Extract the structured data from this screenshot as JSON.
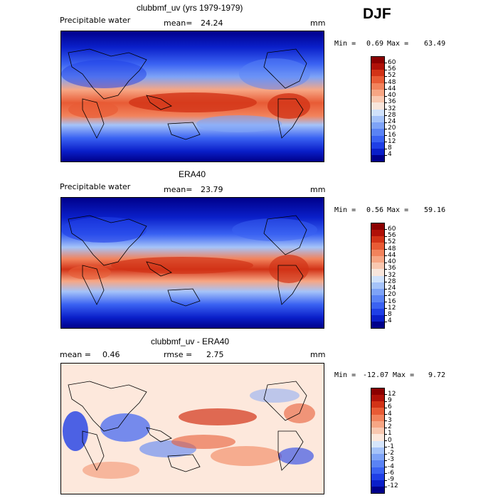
{
  "season": "DJF",
  "chart_data": [
    {
      "type": "heatmap",
      "title": "clubbmf_uv (yrs 1979-1979)",
      "field_label": "Precipitable water",
      "stat_label": "mean=",
      "stat_value": "24.24",
      "units": "mm",
      "min_label": "Min =",
      "min_value": "0.69",
      "max_label": "Max =",
      "max_value": "63.49",
      "colorbar_levels": [
        "4",
        "8",
        "12",
        "16",
        "20",
        "24",
        "28",
        "32",
        "36",
        "40",
        "44",
        "48",
        "52",
        "56",
        "60"
      ],
      "colorbar_colors": [
        "#00008b",
        "#0a1fc9",
        "#1f3fe6",
        "#3a62f2",
        "#5a83f5",
        "#7ea3f7",
        "#a5c3f9",
        "#d0e2fb",
        "#f8e6dc",
        "#f9c8b0",
        "#f7a684",
        "#f2835c",
        "#e85b35",
        "#d23317",
        "#b01108",
        "#8b0000"
      ]
    },
    {
      "type": "heatmap",
      "title": "ERA40",
      "field_label": "Precipitable water",
      "stat_label": "mean=",
      "stat_value": "23.79",
      "units": "mm",
      "min_label": "Min =",
      "min_value": "0.56",
      "max_label": "Max =",
      "max_value": "59.16",
      "colorbar_levels": [
        "4",
        "8",
        "12",
        "16",
        "20",
        "24",
        "28",
        "32",
        "36",
        "40",
        "44",
        "48",
        "52",
        "56",
        "60"
      ],
      "colorbar_colors": [
        "#00008b",
        "#0a1fc9",
        "#1f3fe6",
        "#3a62f2",
        "#5a83f5",
        "#7ea3f7",
        "#a5c3f9",
        "#d0e2fb",
        "#f8e6dc",
        "#f9c8b0",
        "#f7a684",
        "#f2835c",
        "#e85b35",
        "#d23317",
        "#b01108",
        "#8b0000"
      ]
    },
    {
      "type": "heatmap",
      "title": "clubbmf_uv - ERA40",
      "mean_label": "mean =",
      "mean_value": "0.46",
      "rmse_label": "rmse =",
      "rmse_value": "2.75",
      "units": "mm",
      "min_label": "Min =",
      "min_value": "-12.07",
      "max_label": "Max =",
      "max_value": "9.72",
      "colorbar_levels": [
        "-12",
        "-9",
        "-6",
        "-4",
        "-3",
        "-2",
        "-1",
        "0",
        "1",
        "2",
        "3",
        "4",
        "6",
        "9",
        "12"
      ],
      "colorbar_colors": [
        "#00008b",
        "#0a1fc9",
        "#1f3fe6",
        "#3a62f2",
        "#5a83f5",
        "#7ea3f7",
        "#a5c3f9",
        "#d6e6fb",
        "#fde8dc",
        "#f9c8b0",
        "#f7a684",
        "#f2835c",
        "#e85b35",
        "#d23317",
        "#b01108",
        "#8b0000"
      ]
    }
  ]
}
